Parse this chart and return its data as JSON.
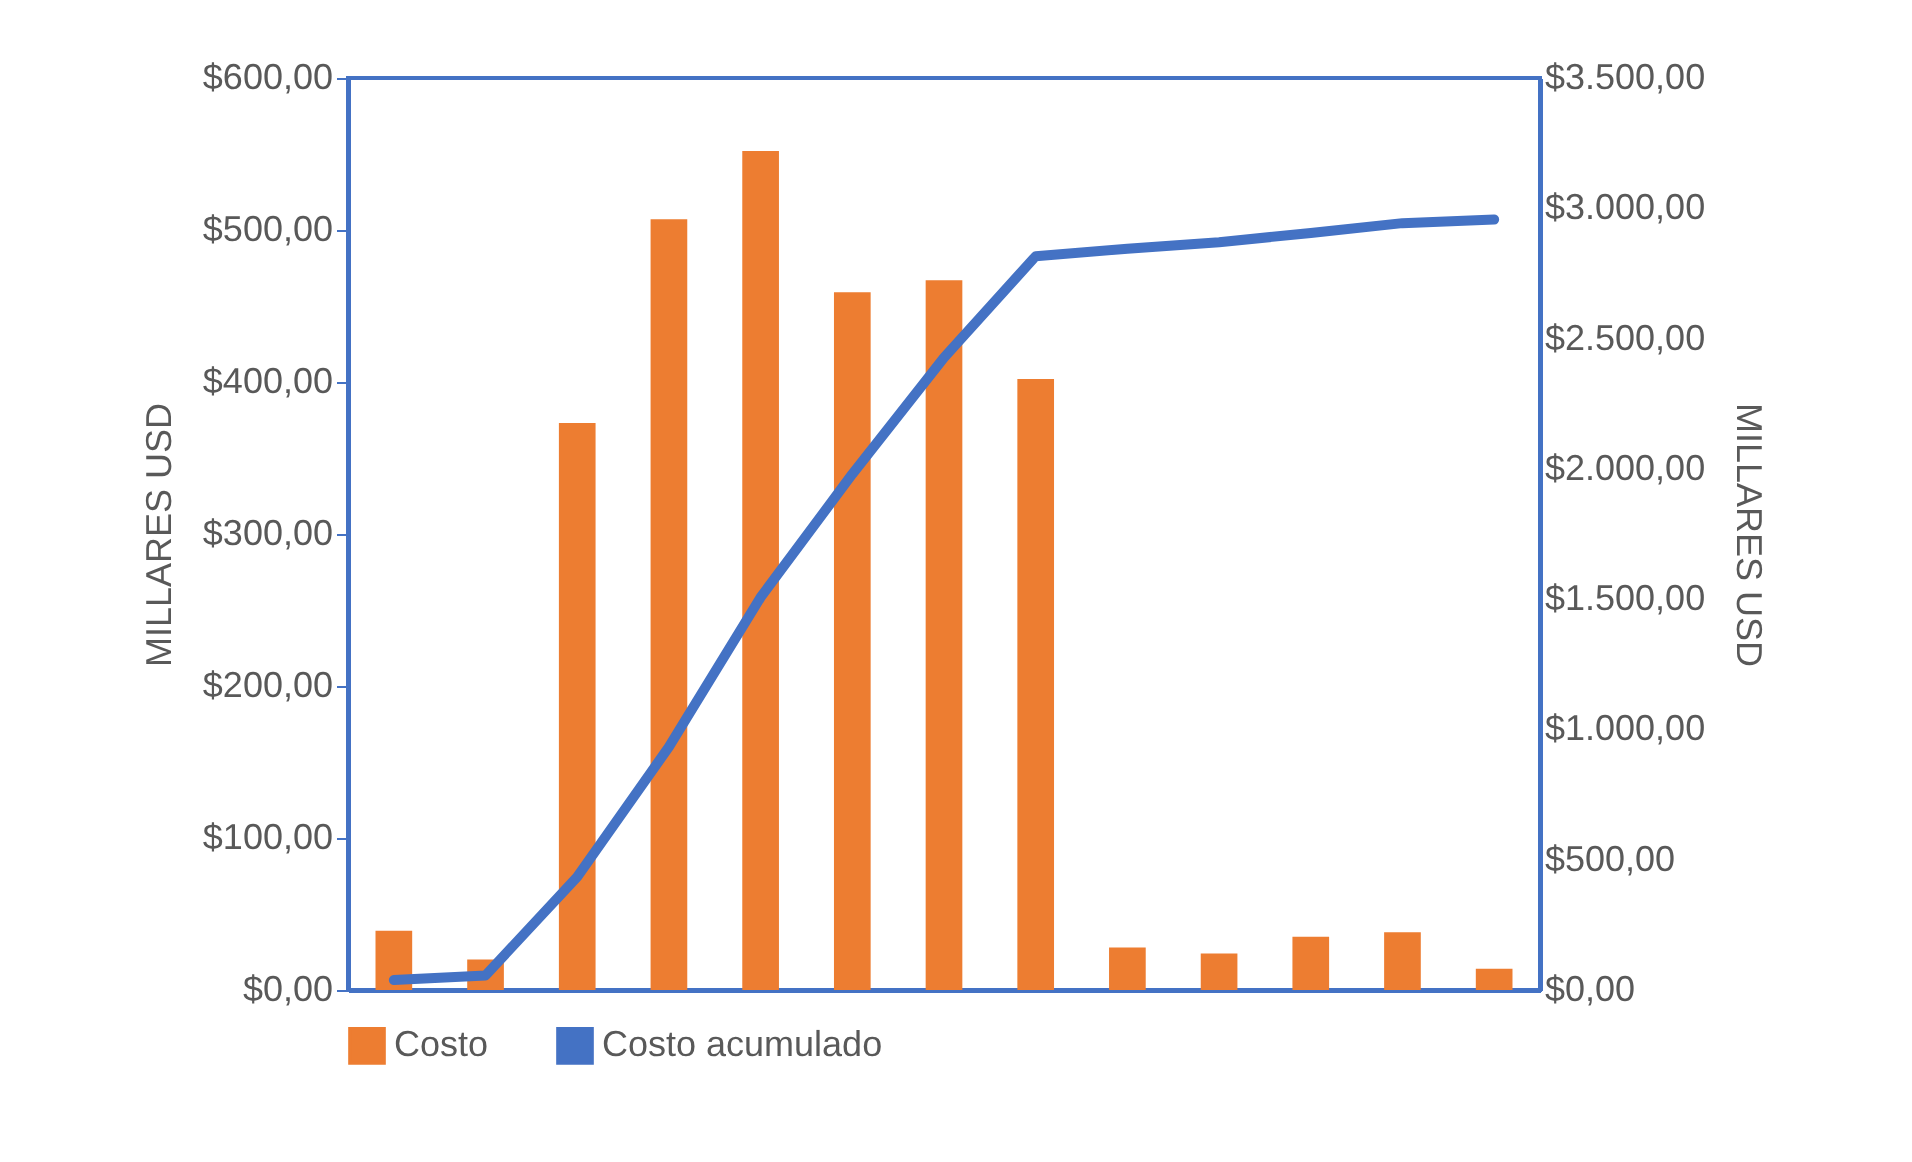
{
  "chart_data": {
    "type": "bar",
    "ylabel": "MILLARES USD",
    "y2label": "MILLARES USD",
    "legend": "bottom",
    "categories": [
      null,
      null,
      null,
      null,
      null,
      null,
      null,
      null,
      null,
      null,
      null,
      null,
      null
    ],
    "series": [
      {
        "name": "Costo",
        "color": "#ed7d31",
        "values": [
          39,
          20,
          373,
          507,
          552,
          459,
          467,
          402,
          28,
          24,
          35,
          38,
          14
        ]
      },
      {
        "name": "Costo acumulado",
        "type": "line",
        "axis": "y2",
        "color": "#4472c4",
        "values": [
          38,
          56,
          434,
          933,
          1507,
          1980,
          2427,
          2816,
          2845,
          2870,
          2905,
          2943,
          2957
        ]
      }
    ],
    "ylim": [
      0,
      600
    ],
    "yticks": [
      {
        "value": 0,
        "label": "$0,00"
      },
      {
        "value": 100,
        "label": "$100,00"
      },
      {
        "value": 200,
        "label": "$200,00"
      },
      {
        "value": 300,
        "label": "$300,00"
      },
      {
        "value": 400,
        "label": "$400,00"
      },
      {
        "value": 500,
        "label": "$500,00"
      },
      {
        "value": 600,
        "label": "$600,00"
      }
    ],
    "y2lim": [
      0,
      3500
    ],
    "y2ticks": [
      {
        "value": 0,
        "label": "$0,00"
      },
      {
        "value": 500,
        "label": "$500,00"
      },
      {
        "value": 1000,
        "label": "$1.000,00"
      },
      {
        "value": 1500,
        "label": "$1.500,00"
      },
      {
        "value": 2000,
        "label": "$2.000,00"
      },
      {
        "value": 2500,
        "label": "$2.500,00"
      },
      {
        "value": 3000,
        "label": "$3.000,00"
      },
      {
        "value": 3500,
        "label": "$3.500,00"
      }
    ]
  }
}
